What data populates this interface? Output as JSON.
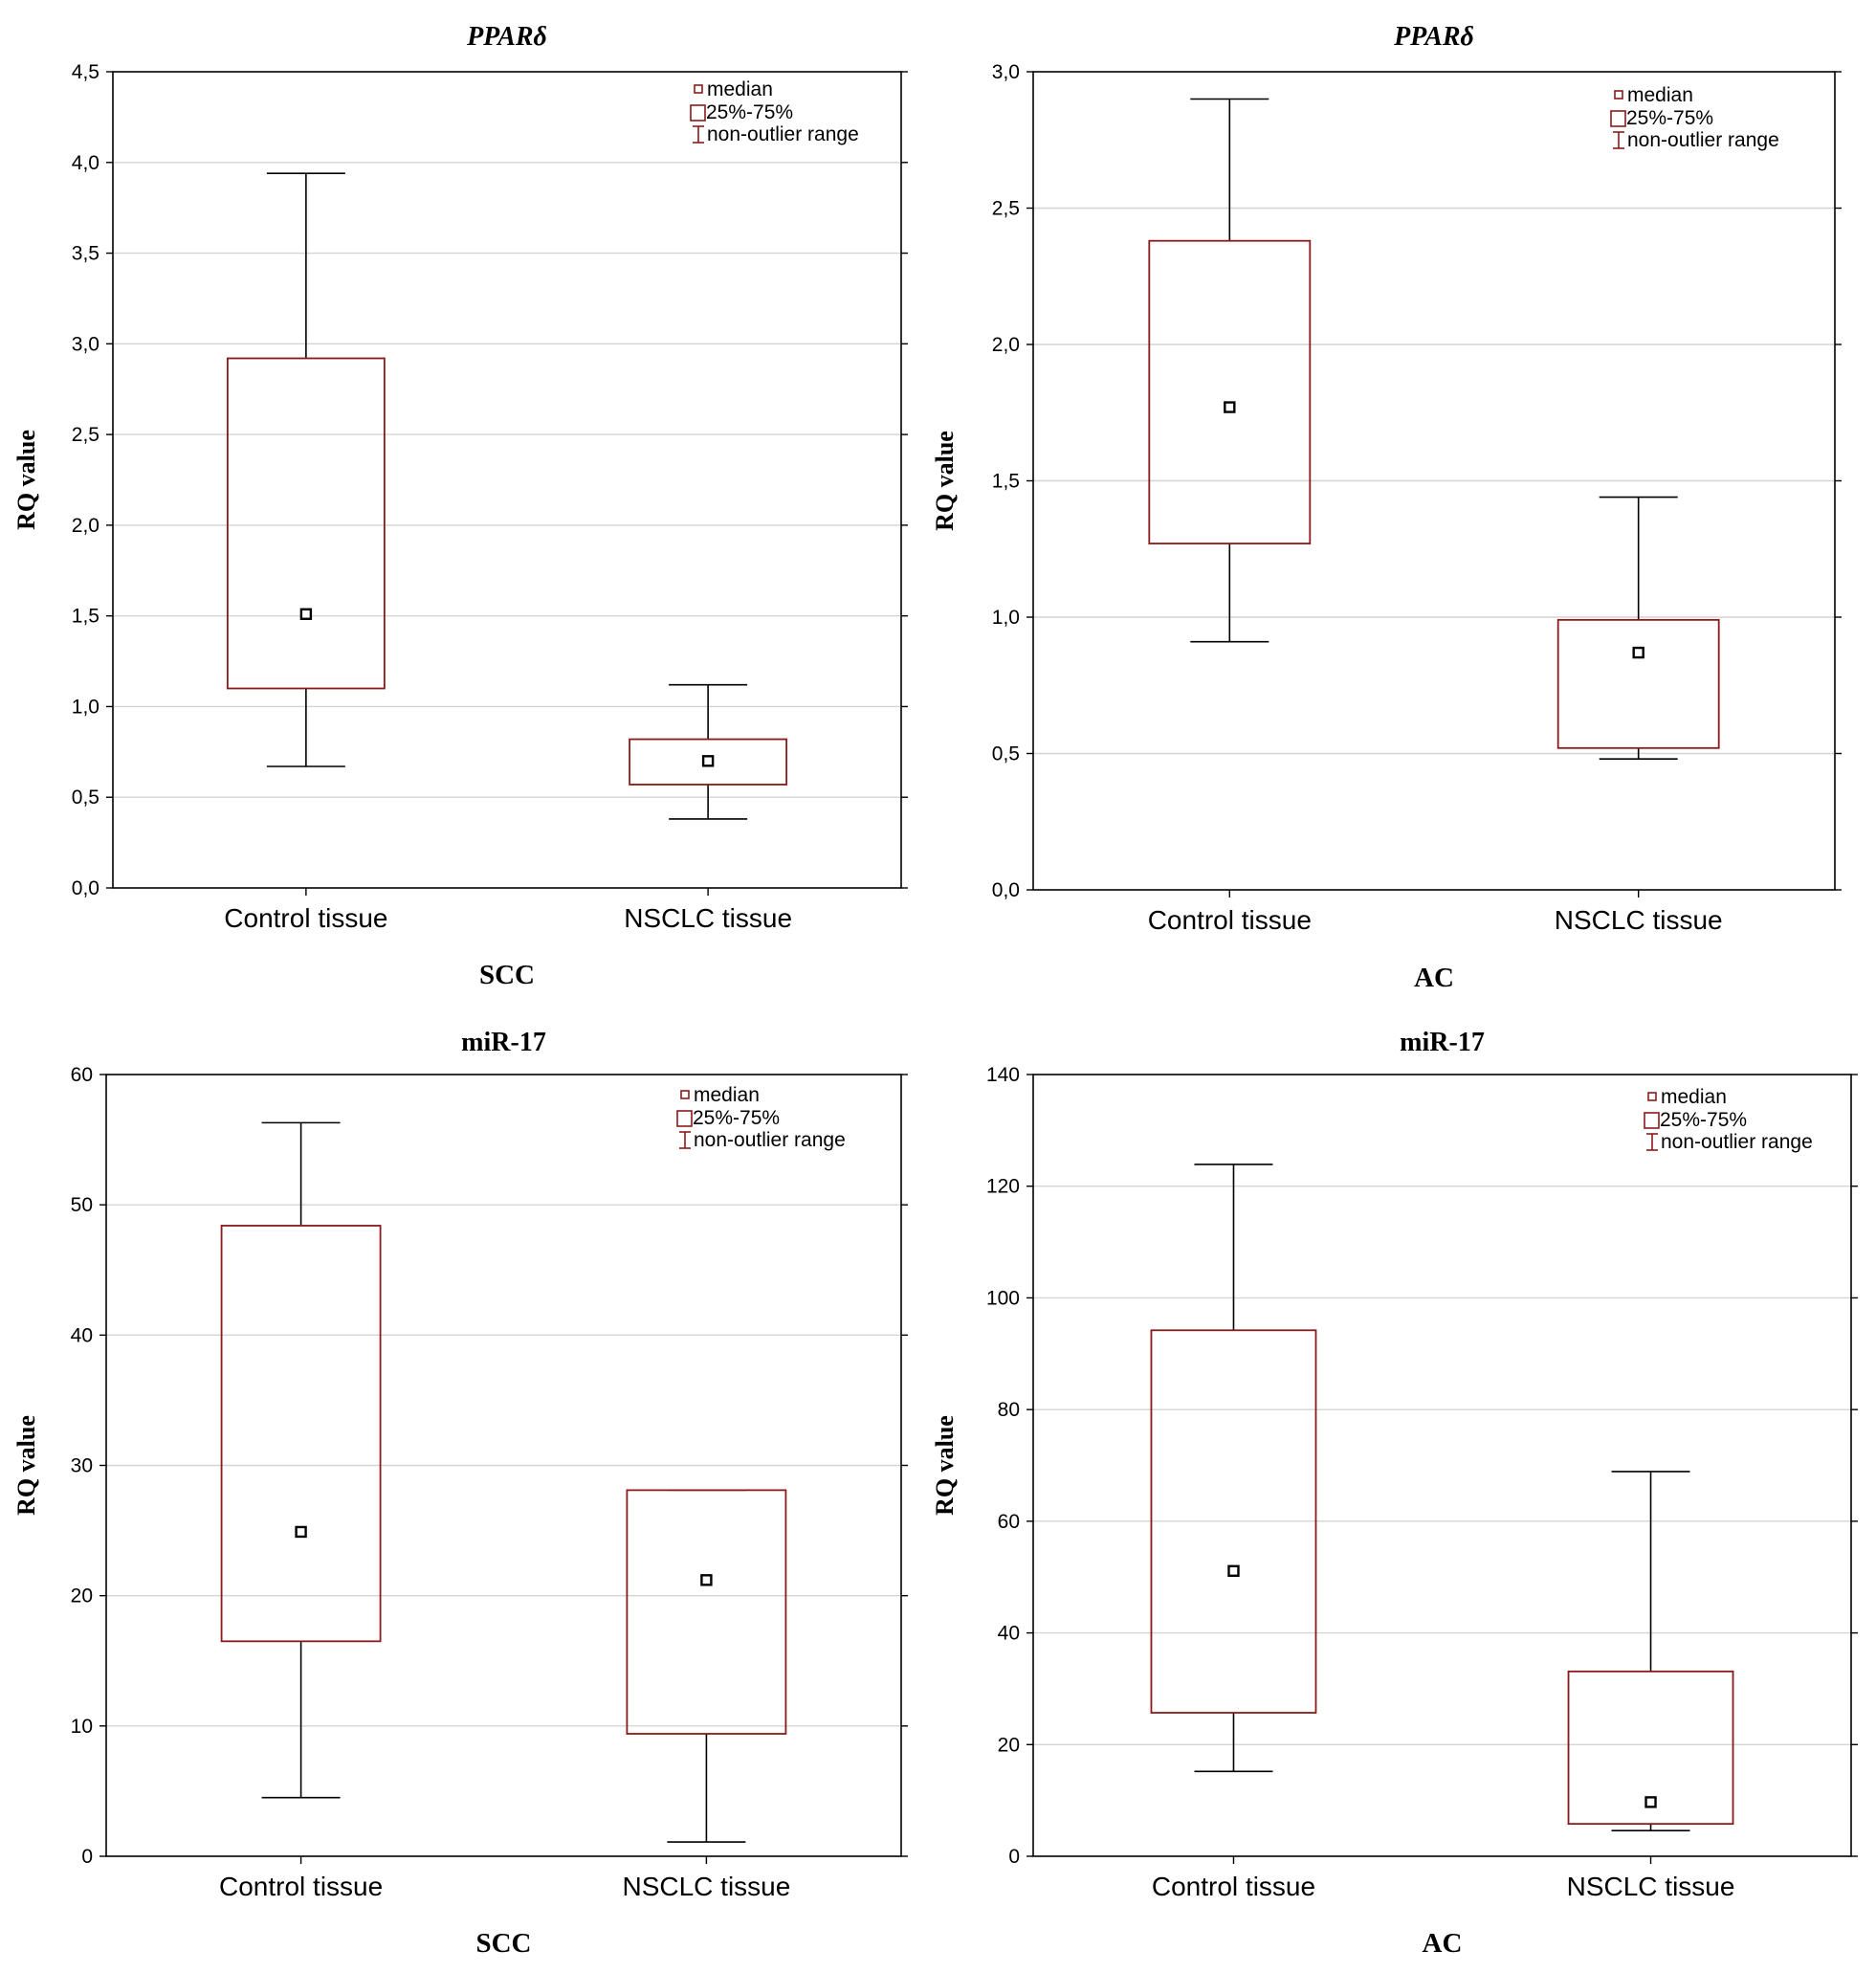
{
  "legend": {
    "median": "median",
    "box": "25%-75%",
    "whisker": "non-outlier range"
  },
  "colors": {
    "box": "#8b1a1a",
    "whisker": "#000000",
    "grid": "#d4d4d4"
  },
  "chart_data": [
    {
      "type": "box",
      "title": "PPARδ",
      "title_italic": true,
      "ylabel": "RQ value",
      "xlabel": "SCC",
      "ylim": [
        0,
        4.5
      ],
      "yticks": [
        "0,0",
        "0,5",
        "1,0",
        "1,5",
        "2,0",
        "2,5",
        "3,0",
        "3,5",
        "4,0",
        "4,5"
      ],
      "ytick_values": [
        0,
        0.5,
        1,
        1.5,
        2,
        2.5,
        3,
        3.5,
        4,
        4.5
      ],
      "categories": [
        "Control tissue",
        "NSCLC tissue"
      ],
      "boxes": [
        {
          "min": 0.67,
          "q1": 1.1,
          "median": 1.51,
          "q3": 2.92,
          "max": 3.94
        },
        {
          "min": 0.38,
          "q1": 0.57,
          "median": 0.7,
          "q3": 0.82,
          "max": 1.12
        }
      ]
    },
    {
      "type": "box",
      "title": "PPARδ",
      "title_italic": true,
      "ylabel": "RQ value",
      "xlabel": "AC",
      "ylim": [
        0,
        3.0
      ],
      "yticks": [
        "0,0",
        "0,5",
        "1,0",
        "1,5",
        "2,0",
        "2,5",
        "3,0"
      ],
      "ytick_values": [
        0,
        0.5,
        1,
        1.5,
        2,
        2.5,
        3
      ],
      "categories": [
        "Control tissue",
        "NSCLC tissue"
      ],
      "boxes": [
        {
          "min": 0.91,
          "q1": 1.27,
          "median": 1.77,
          "q3": 2.38,
          "max": 2.9
        },
        {
          "min": 0.48,
          "q1": 0.52,
          "median": 0.87,
          "q3": 0.99,
          "max": 1.44
        }
      ]
    },
    {
      "type": "box",
      "title": "miR-17",
      "title_italic": false,
      "ylabel": "RQ value",
      "xlabel": "SCC",
      "ylim": [
        0,
        60
      ],
      "yticks": [
        "0",
        "10",
        "20",
        "30",
        "40",
        "50",
        "60"
      ],
      "ytick_values": [
        0,
        10,
        20,
        30,
        40,
        50,
        60
      ],
      "categories": [
        "Control tissue",
        "NSCLC tissue"
      ],
      "boxes": [
        {
          "min": 4.5,
          "q1": 16.5,
          "median": 24.9,
          "q3": 48.4,
          "max": 56.3
        },
        {
          "min": 1.1,
          "q1": 9.4,
          "median": 21.2,
          "q3": 28.1,
          "max": 28.1
        }
      ]
    },
    {
      "type": "box",
      "title": "miR-17",
      "title_italic": false,
      "ylabel": "RQ value",
      "xlabel": "AC",
      "ylim": [
        0,
        140
      ],
      "yticks": [
        "0",
        "20",
        "40",
        "60",
        "80",
        "100",
        "120",
        "140"
      ],
      "ytick_values": [
        0,
        20,
        40,
        60,
        80,
        100,
        120,
        140
      ],
      "categories": [
        "Control tissue",
        "NSCLC tissue"
      ],
      "boxes": [
        {
          "min": 15.2,
          "q1": 25.7,
          "median": 51.1,
          "q3": 94.2,
          "max": 123.9
        },
        {
          "min": 4.6,
          "q1": 5.8,
          "median": 9.7,
          "q3": 33.1,
          "max": 68.9
        }
      ]
    }
  ]
}
